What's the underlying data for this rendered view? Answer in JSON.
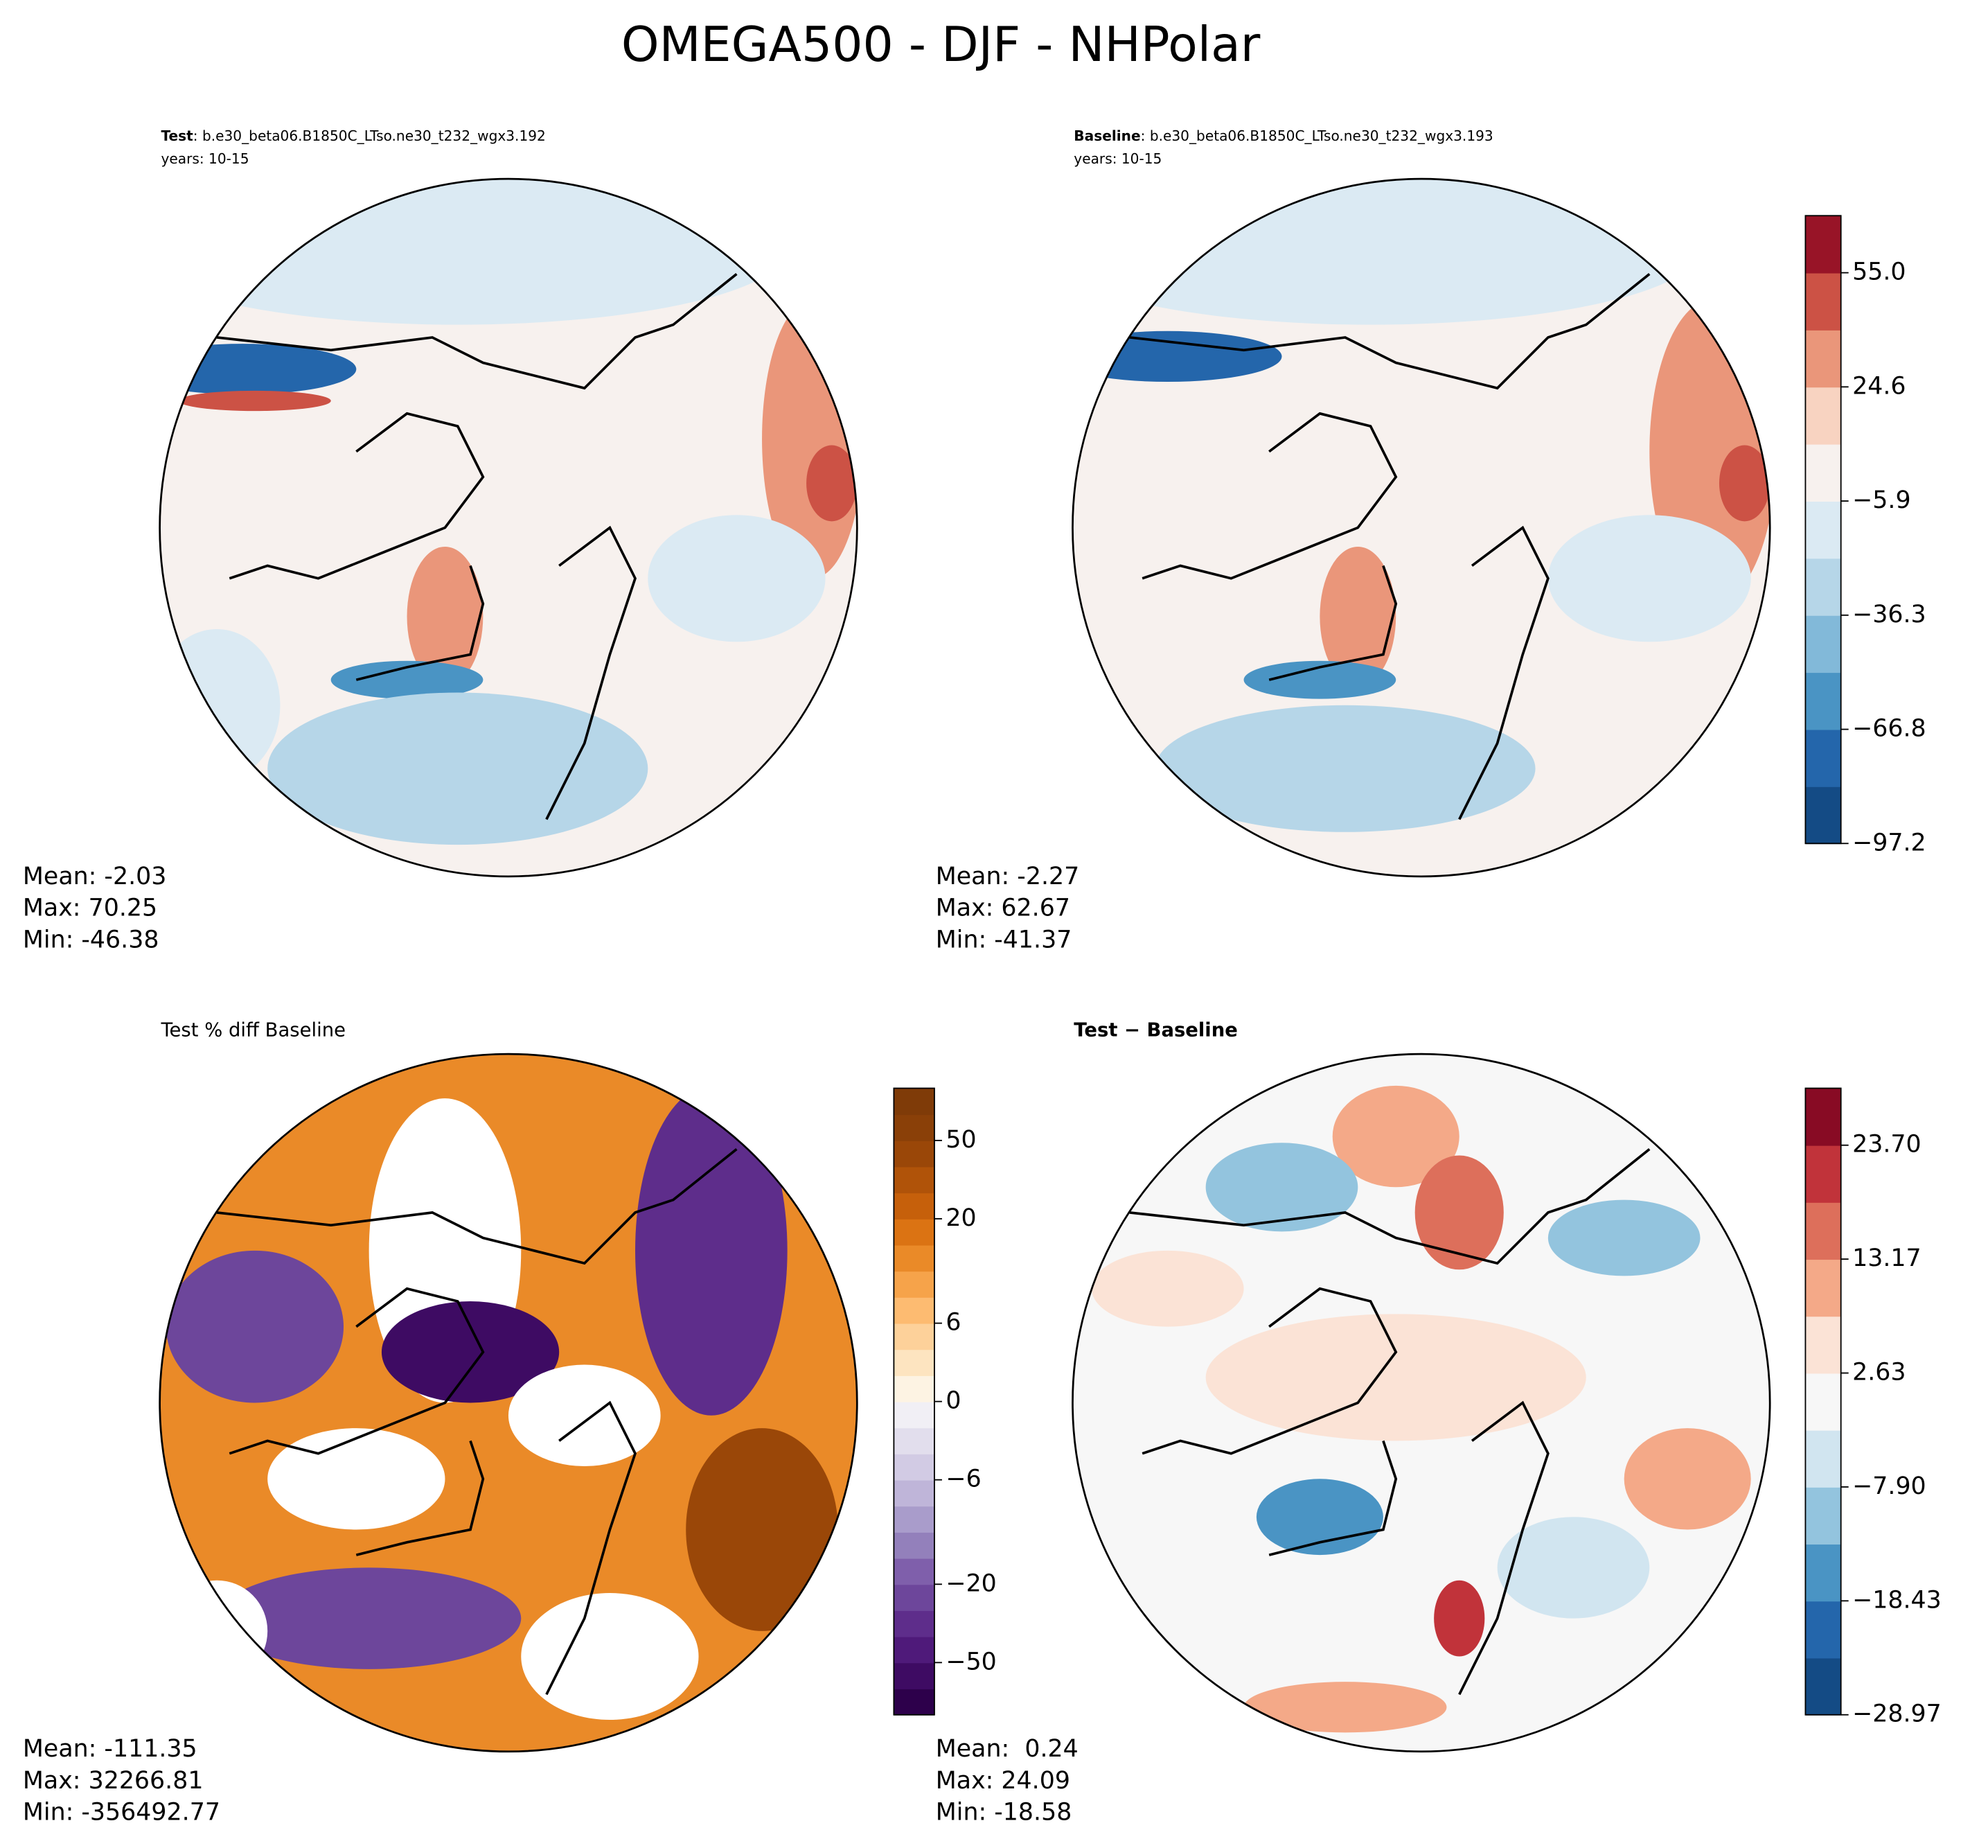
{
  "title": "OMEGA500 - DJF - NHPolar",
  "panels": [
    {
      "heading_bold": "Test",
      "heading_rest": ": b.e30_beta06.B1850C_LTso.ne30_t232_wgx3.192",
      "years": "years: 10-15",
      "stats": [
        "Mean: -2.03",
        "Max: 70.25",
        "Min: -46.38"
      ]
    },
    {
      "heading_bold": "Baseline",
      "heading_rest": ": b.e30_beta06.B1850C_LTso.ne30_t232_wgx3.193",
      "years": "years: 10-15",
      "stats": [
        "Mean: -2.27",
        "Max: 62.67",
        "Min: -41.37"
      ]
    },
    {
      "heading": "Test % diff Baseline",
      "stats": [
        "Mean: -111.35",
        "Max: 32266.81",
        "Min: -356492.77"
      ]
    },
    {
      "heading_bold": "Test − Baseline",
      "stats": [
        "Mean:  0.24",
        "Max: 24.09",
        "Min: -18.58"
      ]
    }
  ],
  "colorbars": [
    {
      "levels": [
        -97.2,
        -82.0,
        -66.8,
        -51.6,
        -36.3,
        -21.1,
        -5.9,
        9.3,
        24.6,
        39.8,
        55.0,
        70.2
      ],
      "colors": [
        "#144b85",
        "#2466ab",
        "#4a94c4",
        "#82b9d9",
        "#b6d6e8",
        "#dbeaf3",
        "#f7f1ee",
        "#f8d3c1",
        "#ea967a",
        "#cc5245",
        "#981427"
      ],
      "ticks": [
        {
          "value": -97.2,
          "label": "−97.2"
        },
        {
          "value": -66.8,
          "label": "−66.8"
        },
        {
          "value": -36.3,
          "label": "−36.3"
        },
        {
          "value": -5.9,
          "label": "−5.9"
        },
        24.6,
        {
          "value": 55.0,
          "label": "55.0"
        }
      ]
    },
    {
      "levels": [
        -100,
        -75,
        -50,
        -40,
        -30,
        -20,
        -15,
        -10,
        -8,
        -6,
        -4,
        -2,
        0,
        2,
        4,
        6,
        8,
        10,
        15,
        20,
        30,
        40,
        50,
        75,
        100
      ],
      "colors": [
        "#2d004b",
        "#3e0b63",
        "#4f1a7a",
        "#5e2d8b",
        "#6d469b",
        "#7f5fab",
        "#9380bb",
        "#a99ccb",
        "#bfb5d9",
        "#d2cbe4",
        "#e2deed",
        "#f1eff5",
        "#fdf3e3",
        "#fde4c0",
        "#fdd19a",
        "#fdbb71",
        "#f6a34a",
        "#ea8a28",
        "#db7313",
        "#c6600b",
        "#b05309",
        "#9a4708",
        "#8a4008",
        "#7f3b08"
      ],
      "ticks": [
        {
          "value": -50,
          "label": "−50"
        },
        {
          "value": -20,
          "label": "−20"
        },
        {
          "value": -6,
          "label": "−6"
        },
        0,
        6,
        20,
        50
      ]
    },
    {
      "levels": [
        -28.97,
        -23.7,
        -18.43,
        -13.17,
        -7.9,
        -2.63,
        2.63,
        7.9,
        13.17,
        18.43,
        23.7,
        28.97
      ],
      "colors": [
        "#144b85",
        "#2466ab",
        "#4a94c4",
        "#93c4de",
        "#d1e5f0",
        "#f7f7f7",
        "#fbe3d6",
        "#f4a988",
        "#dd6f5b",
        "#c1333a",
        "#880b24"
      ],
      "ticks": [
        {
          "value": -28.97,
          "label": "−28.97"
        },
        {
          "value": -18.43,
          "label": "−18.43"
        },
        {
          "value": -7.9,
          "label": "−7.90"
        },
        2.63,
        13.17,
        {
          "value": 23.7,
          "label": "23.70"
        }
      ]
    }
  ]
}
